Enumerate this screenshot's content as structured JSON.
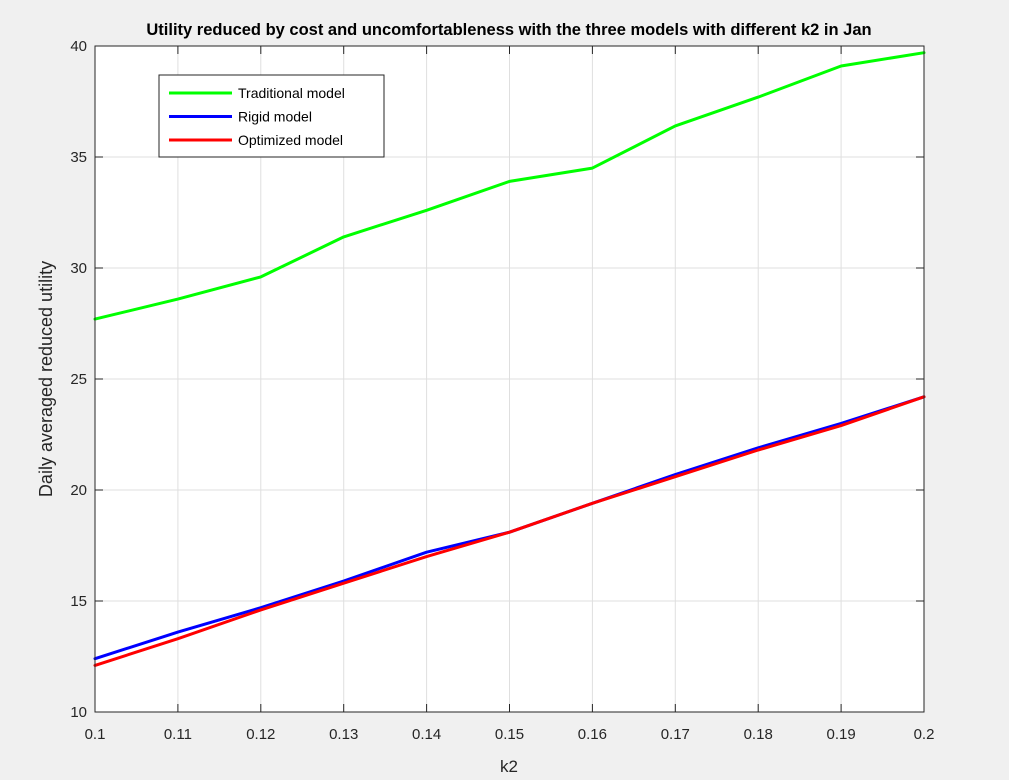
{
  "chart_data": {
    "type": "line",
    "title": "Utility reduced by cost and uncomfortableness with the three models with different k2 in Jan",
    "xlabel": "k2",
    "ylabel": "Daily averaged reduced utility",
    "xlim": [
      0.1,
      0.2
    ],
    "ylim": [
      10,
      40
    ],
    "xticks": [
      0.1,
      0.11,
      0.12,
      0.13,
      0.14,
      0.15,
      0.16,
      0.17,
      0.18,
      0.19,
      0.2
    ],
    "xtick_labels": [
      "0.1",
      "0.11",
      "0.12",
      "0.13",
      "0.14",
      "0.15",
      "0.16",
      "0.17",
      "0.18",
      "0.19",
      "0.2"
    ],
    "yticks": [
      10,
      15,
      20,
      25,
      30,
      35,
      40
    ],
    "ytick_labels": [
      "10",
      "15",
      "20",
      "25",
      "30",
      "35",
      "40"
    ],
    "grid": true,
    "legend_position": "top-left",
    "x": [
      0.1,
      0.11,
      0.12,
      0.13,
      0.14,
      0.15,
      0.16,
      0.17,
      0.18,
      0.19,
      0.2
    ],
    "series": [
      {
        "name": "Traditional model",
        "color": "#00ff00",
        "values": [
          27.7,
          28.6,
          29.6,
          31.4,
          32.6,
          33.9,
          34.5,
          36.4,
          37.7,
          39.1,
          39.7
        ]
      },
      {
        "name": "Rigid model",
        "color": "#0000ff",
        "values": [
          12.4,
          13.6,
          14.7,
          15.9,
          17.2,
          18.1,
          19.4,
          20.7,
          21.9,
          23.0,
          24.2
        ]
      },
      {
        "name": "Optimized model",
        "color": "#ff0000",
        "values": [
          12.1,
          13.3,
          14.6,
          15.8,
          17.0,
          18.1,
          19.4,
          20.6,
          21.8,
          22.9,
          24.2
        ]
      }
    ]
  }
}
